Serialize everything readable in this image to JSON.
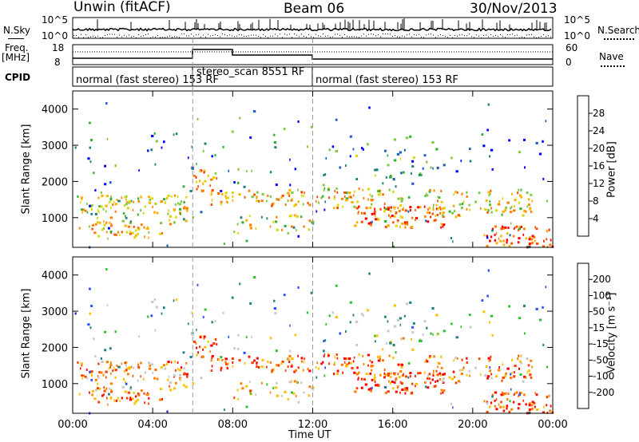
{
  "header": {
    "station": "Unwin (fitACF)",
    "beam": "Beam 06",
    "date": "30/Nov/2013"
  },
  "top_panels": {
    "nsky_label": "N.Sky",
    "nsky_ticks": [
      "10^5",
      "10^0"
    ],
    "nsearch_label": "N.Search",
    "nsearch_ticks": [
      "10^5",
      "10^0"
    ],
    "freq_label": "Freq.",
    "freq_unit": "[MHz]",
    "freq_ticks": [
      "18",
      "8"
    ],
    "nave_label": "Nave",
    "nave_ticks": [
      "60",
      "0"
    ],
    "cpid_label": "CPID",
    "cpid_segments": [
      "normal (fast stereo) 153 RF",
      "stereo_scan 8551 RF",
      "normal (fast stereo) 153 RF"
    ]
  },
  "colors": {
    "power": [
      "#0000ff",
      "#2060c0",
      "#207f7f",
      "#30b030",
      "#80c840",
      "#d8d800",
      "#ffb000",
      "#ff8000",
      "#ff5000",
      "#ff0000"
    ],
    "velocity": [
      "#2020b0",
      "#3050ff",
      "#208080",
      "#30c030",
      "#c8c8c8",
      "#ffc000",
      "#ff8000",
      "#ff4000",
      "#ff0000"
    ]
  },
  "chart_data": [
    {
      "type": "heatmap",
      "name": "power",
      "ylabel": "Slant Range [km]",
      "yticks": [
        "1000",
        "2000",
        "3000",
        "4000"
      ],
      "ylim": [
        180,
        4500
      ],
      "colorbar_label": "Power [dB]",
      "colorbar_ticks": [
        "4",
        "8",
        "12",
        "16",
        "20",
        "24",
        "28"
      ]
    },
    {
      "type": "heatmap",
      "name": "velocity",
      "ylabel": "Slant Range [km]",
      "yticks": [
        "1000",
        "2000",
        "3000",
        "4000"
      ],
      "ylim": [
        180,
        4500
      ],
      "colorbar_label": "Velocity [m s⁻¹]",
      "colorbar_ticks": [
        "200",
        "100",
        "50",
        "15",
        "-15",
        "-50",
        "-100",
        "-200"
      ],
      "xlabel": "Time UT",
      "xticks": [
        "00:00",
        "04:00",
        "08:00",
        "12:00",
        "16:00",
        "20:00",
        "00:00"
      ],
      "x_range_hours": [
        0,
        24
      ]
    }
  ]
}
